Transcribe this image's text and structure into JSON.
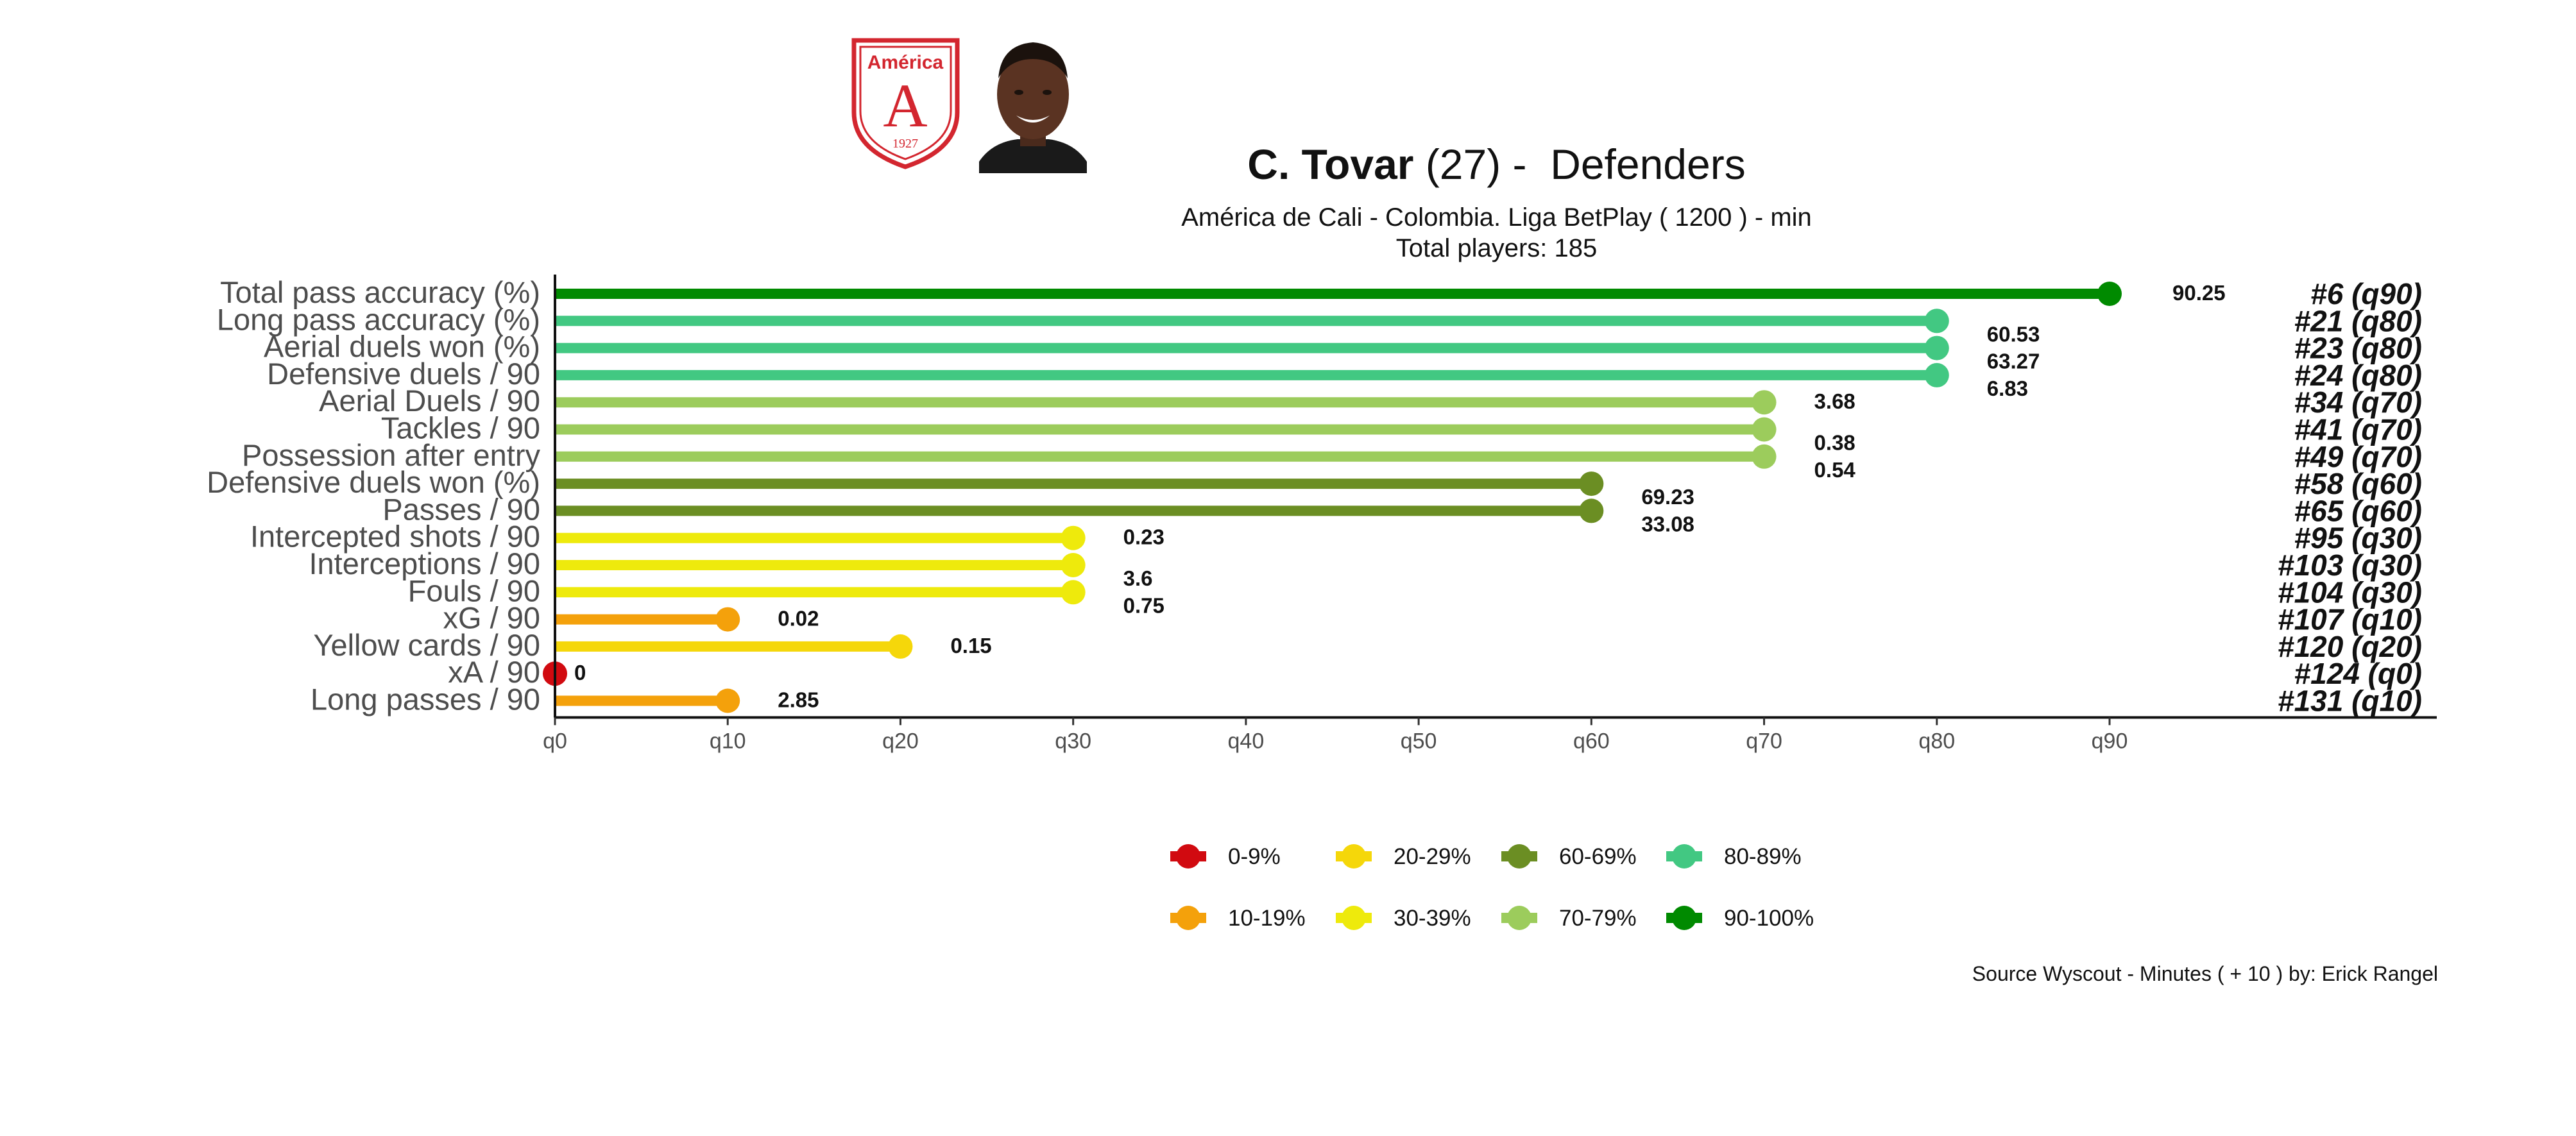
{
  "header": {
    "player_name": "C. Tovar",
    "age_text": "(27)",
    "separator": " -  ",
    "position": "Defenders",
    "subtitle_line1": "América de Cali  -  Colombia. Liga BetPlay  ( 1200 ) - min",
    "subtitle_line2": "Total players:  185",
    "club_badge": {
      "top_text": "América",
      "letter": "A",
      "year": "1927"
    }
  },
  "footer": {
    "source": "Source Wyscout - Minutes ( + 10 ) by: Erick Rangel"
  },
  "colors": {
    "0-9%": "#d10a10",
    "10-19%": "#f4a10b",
    "20-29%": "#f5d70a",
    "30-39%": "#eeea0c",
    "60-69%": "#6b8e23",
    "70-79%": "#9ccc5c",
    "80-89%": "#42c882",
    "90-100%": "#008a00"
  },
  "chart_data": {
    "type": "bar",
    "orientation": "horizontal",
    "style": "lollipop",
    "xlabel": "",
    "ylabel": "",
    "xlim": [
      0,
      90
    ],
    "x_ticks": [
      "q0",
      "q10",
      "q20",
      "q30",
      "q40",
      "q50",
      "q60",
      "q70",
      "q80",
      "q90"
    ],
    "grid": false,
    "legend_position": "bottom",
    "legend": [
      "0-9%",
      "10-19%",
      "20-29%",
      "30-39%",
      "60-69%",
      "70-79%",
      "80-89%",
      "90-100%"
    ],
    "legend_rows": [
      [
        "0-9%",
        "20-29%",
        "60-69%",
        "80-89%"
      ],
      [
        "10-19%",
        "30-39%",
        "70-79%",
        "90-100%"
      ]
    ],
    "metrics": [
      {
        "label": "Total pass accuracy (%)",
        "percentile": 90,
        "value": "90.25",
        "rank": "#6 (q90)",
        "band": "90-100%"
      },
      {
        "label": "Long pass accuracy (%)",
        "percentile": 80,
        "value": "60.53",
        "rank": "#21 (q80)",
        "band": "80-89%"
      },
      {
        "label": "Aerial duels won (%)",
        "percentile": 80,
        "value": "63.27",
        "rank": "#23 (q80)",
        "band": "80-89%"
      },
      {
        "label": "Defensive duels / 90",
        "percentile": 80,
        "value": "6.83",
        "rank": "#24 (q80)",
        "band": "80-89%"
      },
      {
        "label": "Aerial Duels / 90",
        "percentile": 70,
        "value": "3.68",
        "rank": "#34 (q70)",
        "band": "70-79%"
      },
      {
        "label": "Tackles / 90",
        "percentile": 70,
        "value": "0.38",
        "rank": "#41 (q70)",
        "band": "70-79%"
      },
      {
        "label": "Possession after entry",
        "percentile": 70,
        "value": "0.54",
        "rank": "#49 (q70)",
        "band": "70-79%"
      },
      {
        "label": "Defensive duels won (%)",
        "percentile": 60,
        "value": "69.23",
        "rank": "#58 (q60)",
        "band": "60-69%"
      },
      {
        "label": "Passes / 90",
        "percentile": 60,
        "value": "33.08",
        "rank": "#65 (q60)",
        "band": "60-69%"
      },
      {
        "label": "Intercepted shots / 90",
        "percentile": 30,
        "value": "0.23",
        "rank": "#95 (q30)",
        "band": "30-39%"
      },
      {
        "label": "Interceptions / 90",
        "percentile": 30,
        "value": "3.6",
        "rank": "#103 (q30)",
        "band": "30-39%"
      },
      {
        "label": "Fouls / 90",
        "percentile": 30,
        "value": "0.75",
        "rank": "#104 (q30)",
        "band": "30-39%"
      },
      {
        "label": "xG / 90",
        "percentile": 10,
        "value": "0.02",
        "rank": "#107 (q10)",
        "band": "10-19%"
      },
      {
        "label": "Yellow cards / 90",
        "percentile": 20,
        "value": "0.15",
        "rank": "#120 (q20)",
        "band": "20-29%"
      },
      {
        "label": "xA / 90",
        "percentile": 0,
        "value": "0",
        "rank": "#124 (q0)",
        "band": "0-9%"
      },
      {
        "label": "Long passes / 90",
        "percentile": 10,
        "value": "2.85",
        "rank": "#131 (q10)",
        "band": "10-19%"
      }
    ]
  }
}
